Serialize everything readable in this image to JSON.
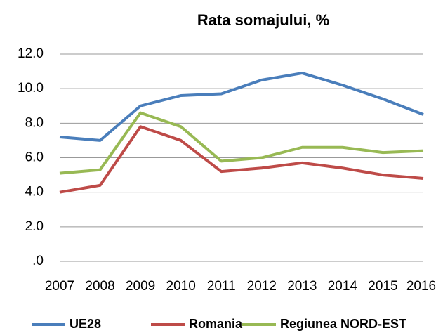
{
  "chart_data": {
    "type": "line",
    "title": "Rata somajului, %",
    "categories": [
      "2007",
      "2008",
      "2009",
      "2010",
      "2011",
      "2012",
      "2013",
      "2014",
      "2015",
      "2016"
    ],
    "series": [
      {
        "name": "UE28",
        "color": "#4a7ebb",
        "values": [
          7.2,
          7.0,
          9.0,
          9.6,
          9.7,
          10.5,
          10.9,
          10.2,
          9.4,
          8.5
        ]
      },
      {
        "name": "Romania",
        "color": "#be4b48",
        "values": [
          4.0,
          4.4,
          7.8,
          7.0,
          5.2,
          5.4,
          5.7,
          5.4,
          5.0,
          4.8
        ]
      },
      {
        "name": "Regiunea NORD-EST",
        "color": "#98b954",
        "values": [
          5.1,
          5.3,
          8.6,
          7.8,
          5.8,
          6.0,
          6.6,
          6.6,
          6.3,
          6.4
        ]
      }
    ],
    "ylim": [
      0,
      12
    ],
    "yticks": [
      {
        "value": 0,
        "label": ".0"
      },
      {
        "value": 2,
        "label": "2.0"
      },
      {
        "value": 4,
        "label": "4.0"
      },
      {
        "value": 6,
        "label": "6.0"
      },
      {
        "value": 8,
        "label": "8.0"
      },
      {
        "value": 10,
        "label": "10.0"
      },
      {
        "value": 12,
        "label": "12.0"
      }
    ],
    "grid": true,
    "legend": "bottom"
  }
}
